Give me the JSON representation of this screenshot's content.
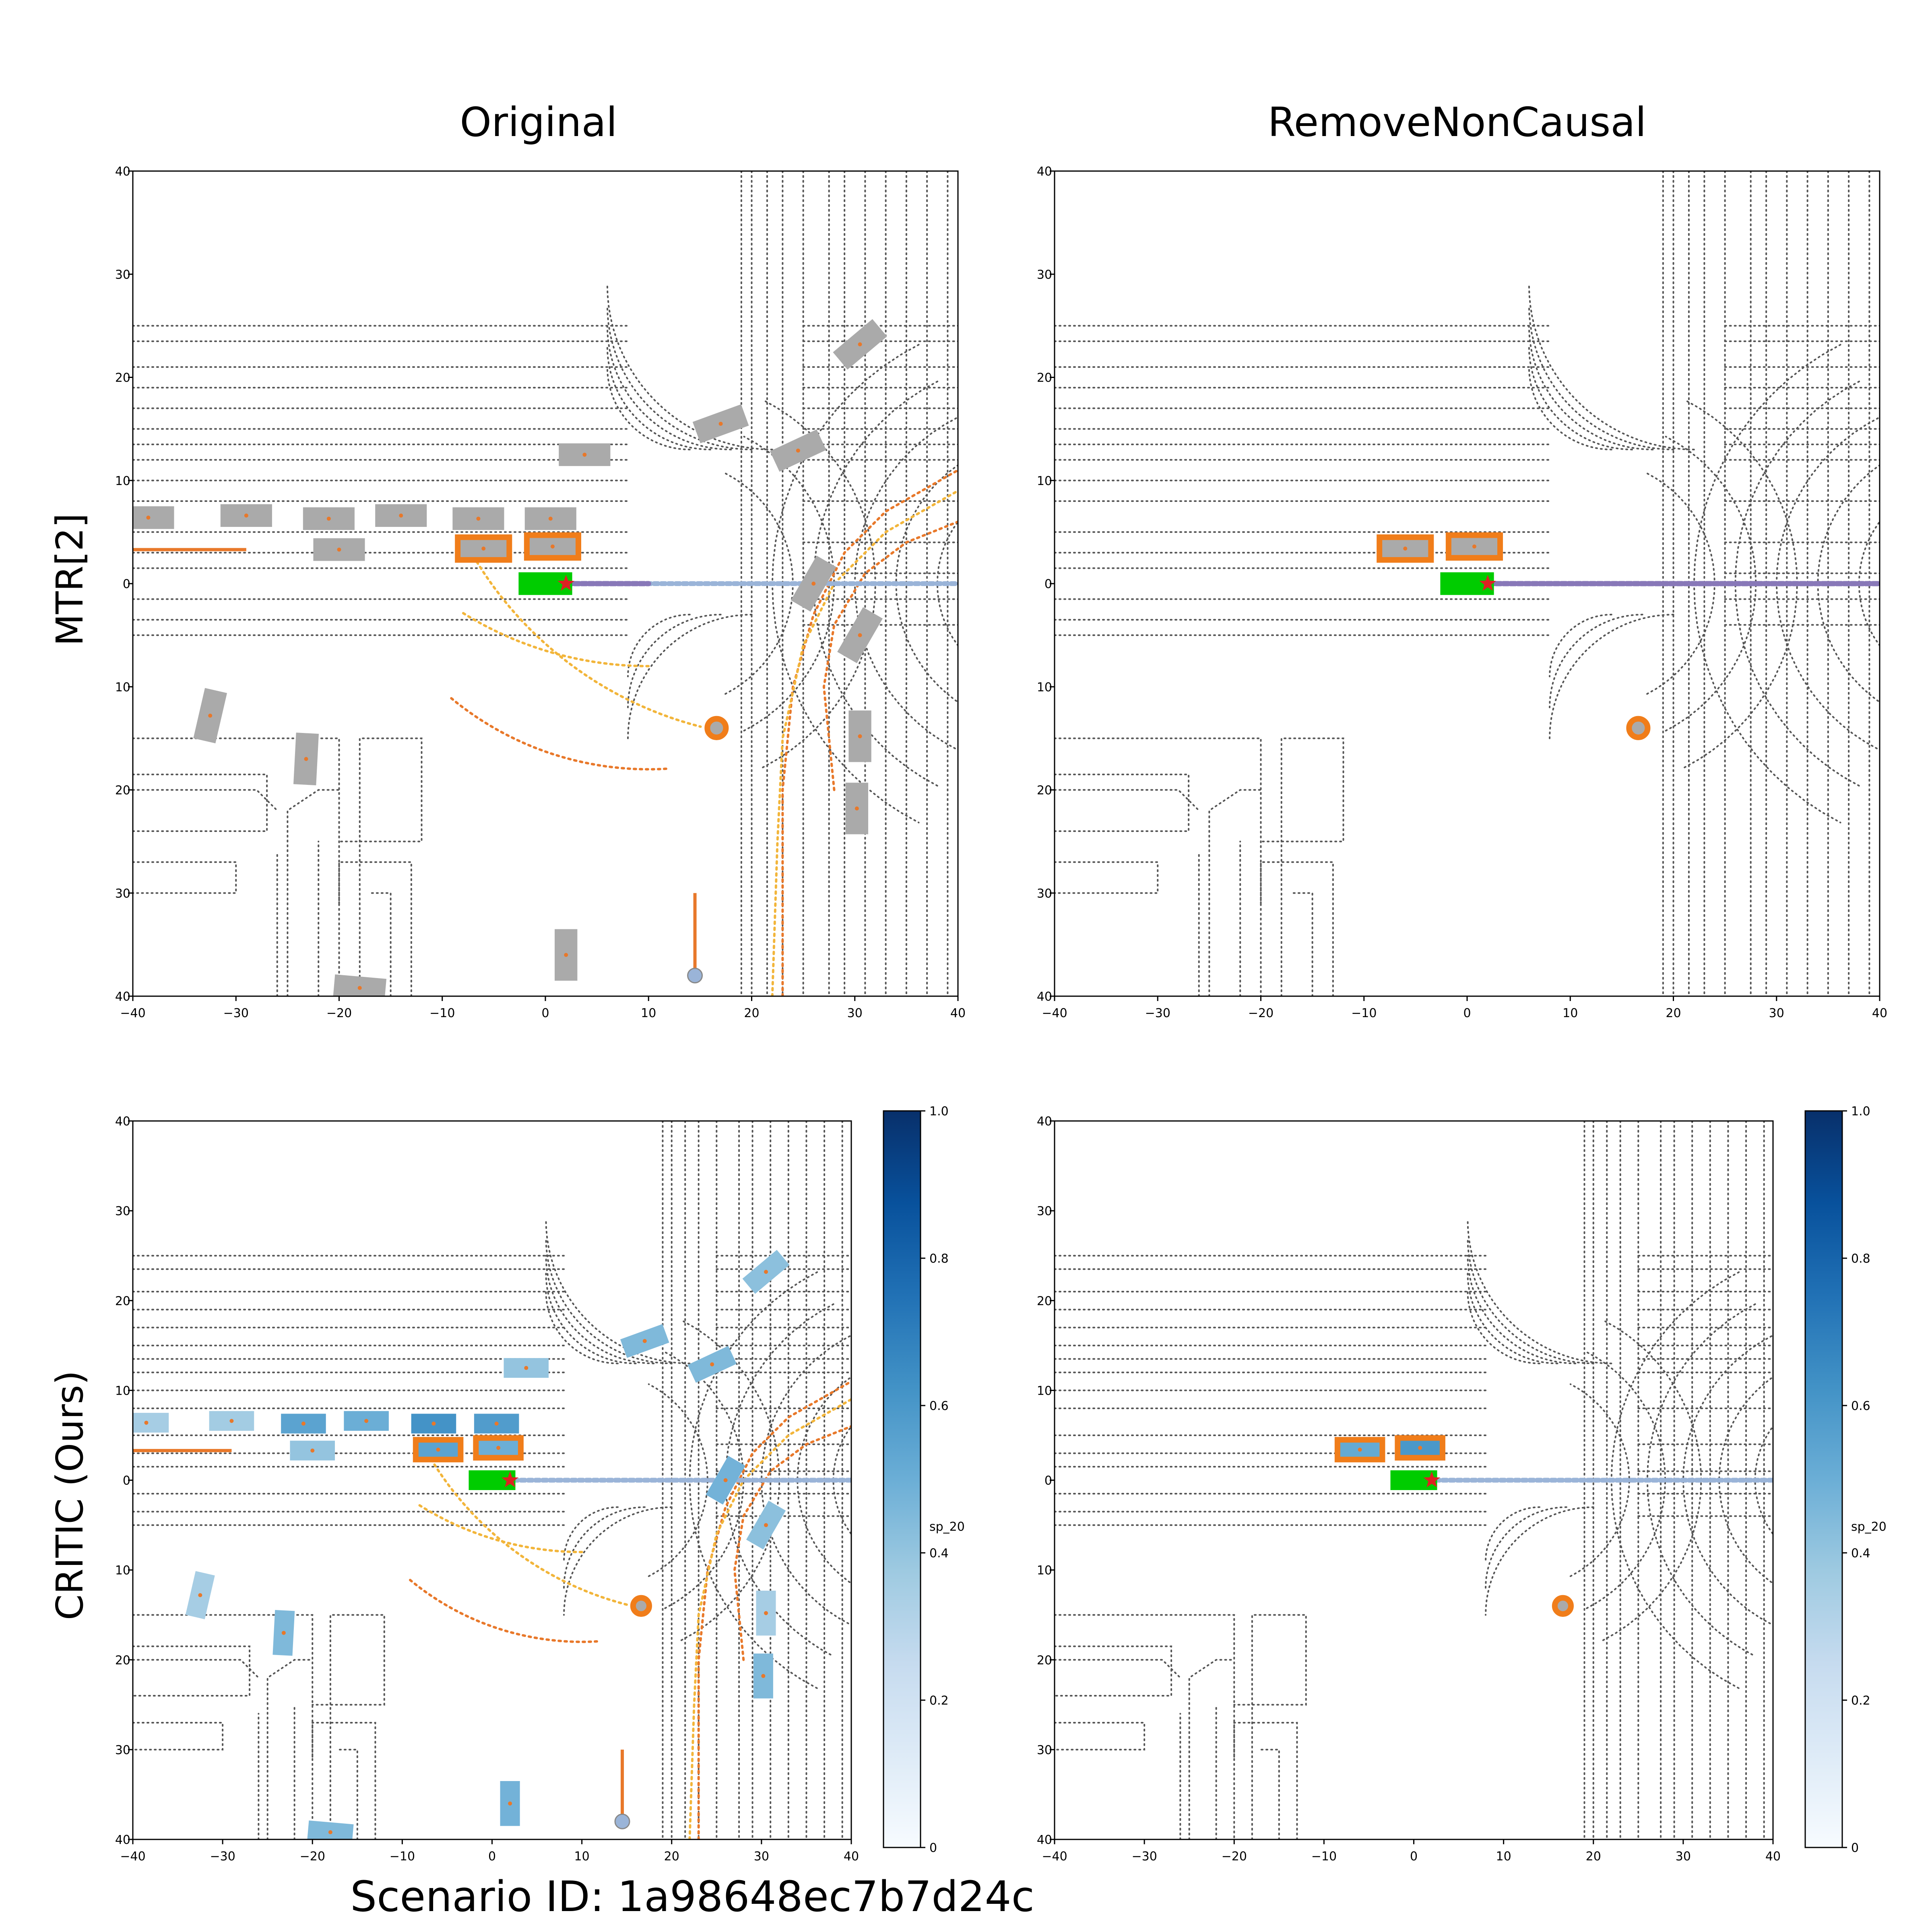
{
  "figure": {
    "column_titles": [
      "Original",
      "RemoveNonCausal"
    ],
    "row_titles": [
      "MTR[2]",
      "CRITIC (Ours)"
    ],
    "footer": "Scenario ID: 1a98648ec7b7d24c"
  },
  "colors": {
    "vehicle_gray": "#aaaaaa",
    "ego_green": "#00cc00",
    "causal_orange": "#f07d1a",
    "ego_star": "#dd2222",
    "history_purple": "#8878b8",
    "future_blue": "#9ab4d8",
    "prediction_yellow": "#f2b53a",
    "prediction_orange": "#e8782a",
    "map_dots": "#555555",
    "colorbar_low": "#f7fbff",
    "colorbar_high": "#08306b"
  },
  "colorbar": {
    "label": "sp_20",
    "ticks": [
      "0",
      "0.2",
      "0.4",
      "0.6",
      "0.8",
      "1.0"
    ]
  },
  "chart_data": [
    {
      "panel": "Original / MTR[2]",
      "type": "scatter",
      "xlim": [
        -40,
        40
      ],
      "ylim": [
        -40,
        40
      ],
      "x_ticks": [
        -40,
        -30,
        -20,
        -10,
        0,
        10,
        20,
        30,
        40
      ],
      "y_ticks": [
        -40,
        -30,
        -20,
        -10,
        0,
        10,
        20,
        30,
        40
      ],
      "x_tick_labels": [
        "−40",
        "−30",
        "−20",
        "−10",
        "0",
        "10",
        "20",
        "30",
        "40"
      ],
      "y_tick_labels": [
        "40",
        "30",
        "20",
        "10",
        "0",
        "10",
        "20",
        "30",
        "40"
      ],
      "ego": {
        "x": 0,
        "y": 0,
        "heading": 0
      },
      "agents": [
        {
          "x": -38.5,
          "y": 6.4,
          "heading": 0,
          "causal": false,
          "score": 0.35
        },
        {
          "x": -29.0,
          "y": 6.6,
          "heading": 0,
          "causal": false,
          "score": 0.36
        },
        {
          "x": -21.0,
          "y": 6.3,
          "heading": 0,
          "causal": false,
          "score": 0.55
        },
        {
          "x": -14.0,
          "y": 6.6,
          "heading": 0,
          "causal": false,
          "score": 0.5
        },
        {
          "x": -6.5,
          "y": 6.3,
          "heading": 0,
          "causal": false,
          "score": 0.62
        },
        {
          "x": 0.5,
          "y": 6.3,
          "heading": 0,
          "causal": false,
          "score": 0.58
        },
        {
          "x": -20.0,
          "y": 3.3,
          "heading": 0,
          "causal": false,
          "score": 0.4
        },
        {
          "x": -6.0,
          "y": 3.4,
          "heading": 0,
          "causal": true,
          "score": 0.55
        },
        {
          "x": 0.7,
          "y": 3.6,
          "heading": 0,
          "causal": true,
          "score": 0.5
        },
        {
          "x": 3.8,
          "y": 12.5,
          "heading": 0,
          "causal": false,
          "score": 0.4
        },
        {
          "x": 17.0,
          "y": 15.5,
          "heading": 20,
          "causal": false,
          "score": 0.45
        },
        {
          "x": 24.5,
          "y": 12.9,
          "heading": 25,
          "causal": false,
          "score": 0.45
        },
        {
          "x": 30.5,
          "y": 23.2,
          "heading": 40,
          "causal": false,
          "score": 0.42
        },
        {
          "x": 26.0,
          "y": 0.0,
          "heading": 60,
          "causal": false,
          "score": 0.48
        },
        {
          "x": 30.5,
          "y": -5.0,
          "heading": 60,
          "causal": false,
          "score": 0.42
        },
        {
          "x": -32.5,
          "y": -12.8,
          "heading": 77,
          "causal": false,
          "score": 0.35
        },
        {
          "x": -23.2,
          "y": -17.0,
          "heading": 87,
          "causal": false,
          "score": 0.45
        },
        {
          "x": 30.5,
          "y": -14.8,
          "heading": 90,
          "causal": false,
          "score": 0.35
        },
        {
          "x": 30.2,
          "y": -21.8,
          "heading": 90,
          "causal": false,
          "score": 0.45
        },
        {
          "x": 2.0,
          "y": -36.0,
          "heading": 90,
          "causal": false,
          "score": 0.48
        },
        {
          "x": -18.0,
          "y": -39.2,
          "heading": -5,
          "causal": false,
          "score": 0.45
        }
      ],
      "circle_agent": {
        "x": 16.6,
        "y": -14.0,
        "causal": true
      },
      "ego_future": [
        [
          0,
          0
        ],
        [
          10,
          0
        ],
        [
          20,
          0
        ],
        [
          30,
          0
        ],
        [
          40,
          0
        ]
      ],
      "ego_history": [
        [
          0,
          0
        ],
        [
          10,
          0
        ]
      ]
    },
    {
      "panel": "RemoveNonCausal / MTR[2]",
      "type": "scatter",
      "xlim": [
        -40,
        40
      ],
      "ylim": [
        -40,
        40
      ],
      "x_ticks": [
        -40,
        -30,
        -20,
        -10,
        0,
        10,
        20,
        30,
        40
      ],
      "y_ticks": [
        -40,
        -30,
        -20,
        -10,
        0,
        10,
        20,
        30,
        40
      ],
      "x_tick_labels": [
        "−40",
        "−30",
        "−20",
        "−10",
        "0",
        "10",
        "20",
        "30",
        "40"
      ],
      "y_tick_labels": [
        "40",
        "30",
        "20",
        "10",
        "0",
        "10",
        "20",
        "30",
        "40"
      ],
      "ego": {
        "x": 0,
        "y": 0,
        "heading": 0
      },
      "agents": [
        {
          "x": -6.0,
          "y": 3.4,
          "heading": 0,
          "causal": true,
          "score": 0.52
        },
        {
          "x": 0.7,
          "y": 3.6,
          "heading": 0,
          "causal": true,
          "score": 0.6
        }
      ],
      "circle_agent": {
        "x": 16.6,
        "y": -14.0,
        "causal": true
      },
      "ego_future": [
        [
          0,
          0
        ],
        [
          10,
          0
        ],
        [
          20,
          0
        ],
        [
          30,
          0
        ],
        [
          40,
          0
        ]
      ],
      "ego_history": [
        [
          0,
          0
        ],
        [
          40,
          0
        ]
      ]
    }
  ]
}
